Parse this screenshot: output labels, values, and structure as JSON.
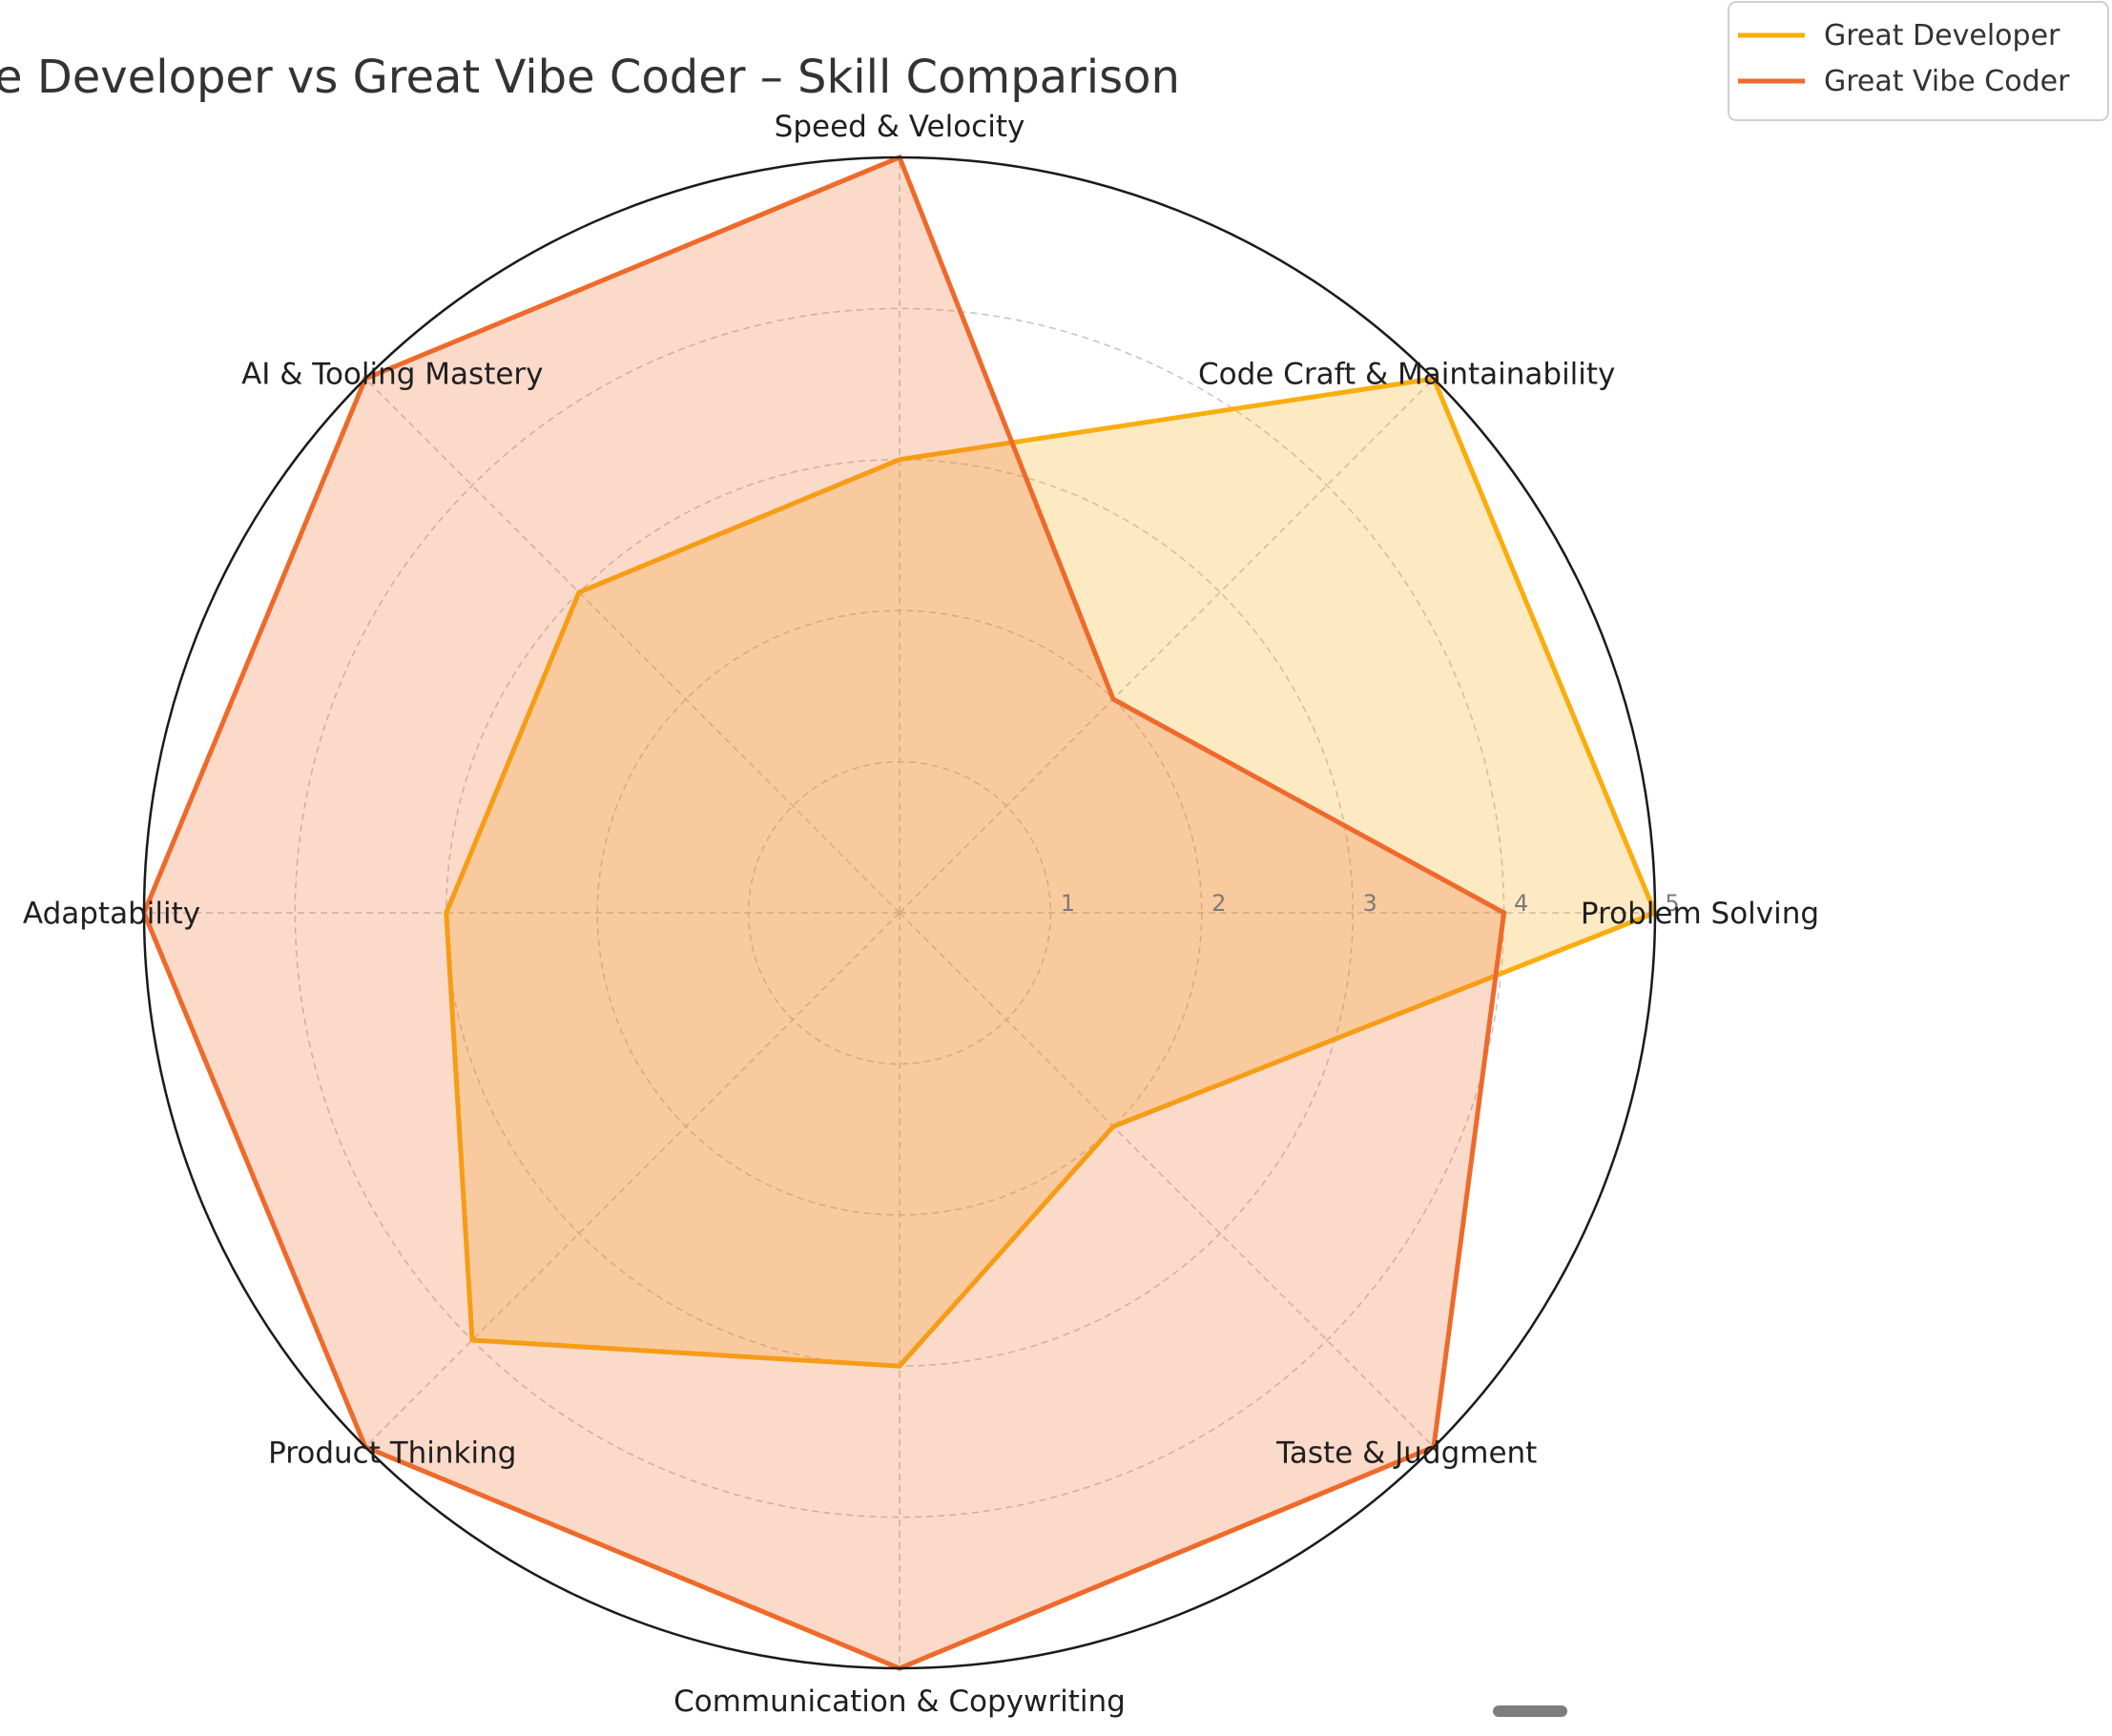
{
  "chart_data": {
    "type": "radar",
    "title": "Great Software Developer vs Great Vibe Coder – Skill Comparison",
    "categories": [
      "Problem Solving",
      "Code Craft & Maintainability",
      "Speed & Velocity",
      "AI & Tooling Mastery",
      "Adaptability",
      "Product Thinking",
      "Communication & Copywriting",
      "Taste & Judgment"
    ],
    "rlim": [
      0,
      5
    ],
    "rticks": [
      "1",
      "2",
      "3",
      "4",
      "5"
    ],
    "grid": true,
    "legend_position": "top-right",
    "series": [
      {
        "name": "Great Developer",
        "color": "#f9ad0e",
        "values": [
          5,
          5,
          3,
          3,
          3,
          4,
          3,
          2
        ]
      },
      {
        "name": "Great Vibe Coder",
        "color": "#ee6a2b",
        "values": [
          4,
          2,
          5,
          5,
          5,
          5,
          5,
          5
        ]
      }
    ]
  }
}
